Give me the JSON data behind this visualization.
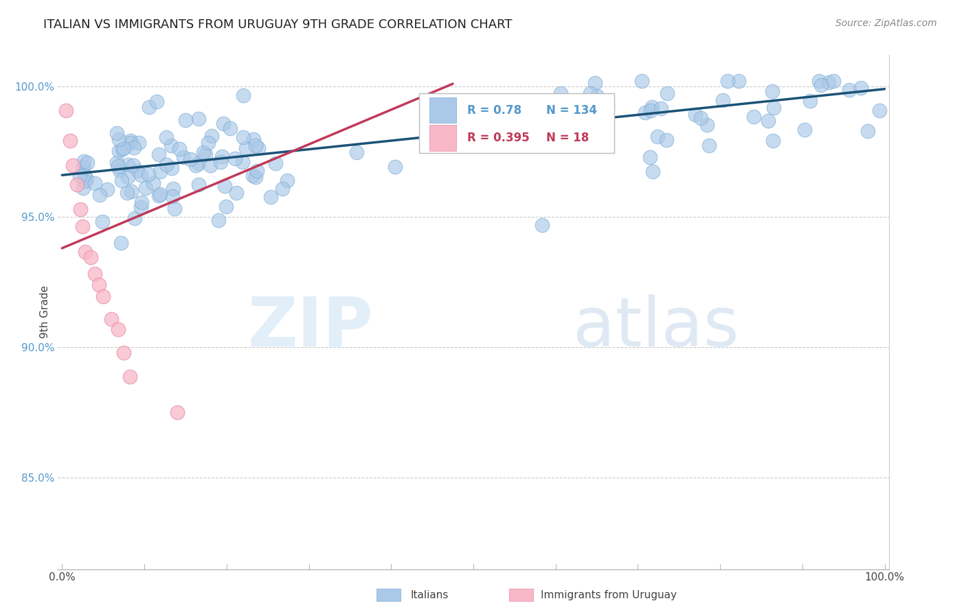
{
  "title": "ITALIAN VS IMMIGRANTS FROM URUGUAY 9TH GRADE CORRELATION CHART",
  "source": "Source: ZipAtlas.com",
  "xlabel_italians": "Italians",
  "xlabel_uruguay": "Immigrants from Uruguay",
  "ylabel": "9th Grade",
  "R_italian": 0.78,
  "N_italian": 134,
  "R_uruguay": 0.395,
  "N_uruguay": 18,
  "xlim": [
    -0.005,
    1.005
  ],
  "ylim": [
    0.815,
    1.012
  ],
  "yticks": [
    0.85,
    0.9,
    0.95,
    1.0
  ],
  "ytick_labels": [
    "85.0%",
    "90.0%",
    "95.0%",
    "100.0%"
  ],
  "xtick_positions": [
    0.0,
    0.1,
    0.2,
    0.3,
    0.4,
    0.5,
    0.6,
    0.7,
    0.8,
    0.9,
    1.0
  ],
  "xtick_labels": [
    "0.0%",
    "",
    "",
    "",
    "",
    "",
    "",
    "",
    "",
    "",
    "100.0%"
  ],
  "watermark_zip": "ZIP",
  "watermark_atlas": "atlas",
  "blue_color": "#aac8e8",
  "blue_edge_color": "#7aadd4",
  "blue_line_color": "#1a5276",
  "pink_color": "#f8b8c8",
  "pink_edge_color": "#e888a8",
  "pink_line_color": "#c0395a",
  "bg_color": "#ffffff",
  "grid_color": "#cccccc",
  "title_color": "#222222",
  "source_color": "#888888",
  "ylabel_color": "#444444",
  "ytick_color": "#5599cc",
  "xtick_color": "#444444",
  "italian_trend_x0": 0.0,
  "italian_trend_x1": 1.0,
  "italian_trend_y0": 0.966,
  "italian_trend_y1": 0.999,
  "uruguay_trend_x0": 0.0,
  "uruguay_trend_x1": 0.475,
  "uruguay_trend_y0": 0.938,
  "uruguay_trend_y1": 1.001,
  "dot_size": 220
}
